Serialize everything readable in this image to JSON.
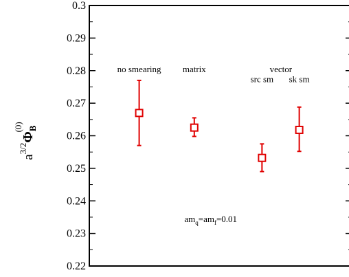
{
  "chart_data": {
    "type": "scatter",
    "ylim": [
      0.22,
      0.3
    ],
    "yticks": [
      "0.22",
      "0.23",
      "0.24",
      "0.25",
      "0.26",
      "0.27",
      "0.28",
      "0.29",
      "0.3"
    ],
    "ylabel": {
      "base": "a",
      "base_sup": "3/2",
      "symbol": "Φ",
      "symbol_sub": "B",
      "symbol_sup": "(0)"
    },
    "points": [
      {
        "x": 0.19,
        "y": 0.267,
        "err_low": 0.257,
        "err_high": 0.277
      },
      {
        "x": 0.4,
        "y": 0.2625,
        "err_low": 0.2598,
        "err_high": 0.2655
      },
      {
        "x": 0.658,
        "y": 0.2532,
        "err_low": 0.249,
        "err_high": 0.2575
      },
      {
        "x": 0.8,
        "y": 0.2618,
        "err_low": 0.2552,
        "err_high": 0.2688
      }
    ],
    "annotations": [
      {
        "text": "no smearing",
        "x": 0.19,
        "y": 0.2795
      },
      {
        "text": "matrix",
        "x": 0.4,
        "y": 0.2795
      },
      {
        "text": "vector",
        "x": 0.73,
        "y": 0.2795
      },
      {
        "text": "src sm",
        "x": 0.658,
        "y": 0.2765
      },
      {
        "text": "sk sm",
        "x": 0.8,
        "y": 0.2765
      }
    ],
    "note": {
      "base": "am",
      "sub1": "q",
      "mid": "=am",
      "sub2": "f",
      "tail": "=0.01",
      "x": 0.48,
      "y": 0.2335
    },
    "marker_color": "#e00000",
    "grid": false
  }
}
